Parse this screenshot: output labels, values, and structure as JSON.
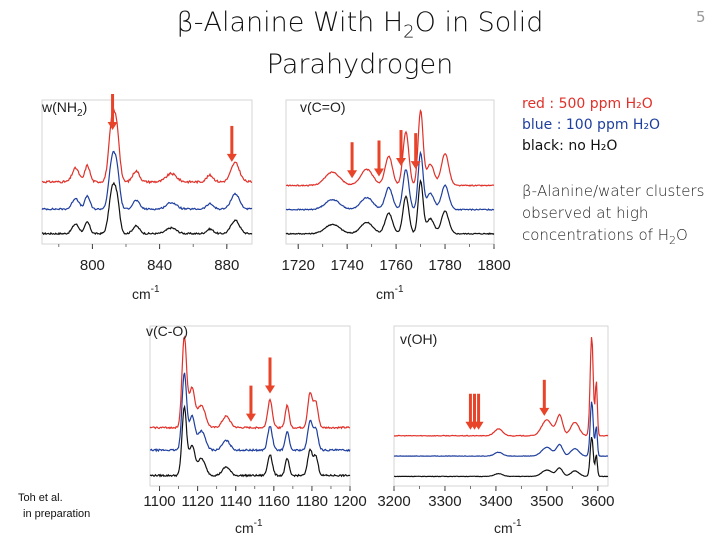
{
  "slide": {
    "title_pre": "β-Alanine With H",
    "title_sub": "2",
    "title_post": "O in Solid",
    "title_line2": "Parahydrogen",
    "number": "5"
  },
  "legend": {
    "red": "red : 500 ppm H₂O",
    "blue": "blue : 100 ppm H₂O",
    "black": "black: no H₂O"
  },
  "note": {
    "pre": "β-Alanine/water clusters observed at high concentrations of H",
    "sub": "2",
    "post": "O"
  },
  "credit": {
    "line1": "Toh et al.",
    "line2": "in preparation"
  },
  "colors": {
    "red": "#e0312a",
    "blue": "#1f3f9e",
    "black": "#111111",
    "arrow": "#e8442a"
  },
  "chart_data": [
    {
      "type": "line",
      "panel": "w(NH2)",
      "label_pre": "w(NH",
      "label_sub": "2",
      "label_post": ")",
      "xlabel": "cm",
      "xlabel_sup": "-1",
      "xlim": [
        770,
        895
      ],
      "ticks": [
        800,
        840,
        880
      ],
      "arrows_x": [
        812,
        883
      ],
      "peaks": [
        [
          790,
          0.25,
          2
        ],
        [
          797,
          0.3,
          1.5
        ],
        [
          812,
          1.2,
          2
        ],
        [
          815,
          0.6,
          1.5
        ],
        [
          826,
          0.2,
          2
        ],
        [
          847,
          0.15,
          3
        ],
        [
          870,
          0.12,
          2
        ],
        [
          885,
          0.35,
          2.5
        ]
      ],
      "series": [
        {
          "name": "red : 500 ppm H₂O",
          "color": "red",
          "offset": 0.95,
          "scale": 1.0,
          "noise": 0.04
        },
        {
          "name": "blue : 100 ppm H₂O",
          "color": "blue",
          "offset": 0.45,
          "scale": 0.8,
          "noise": 0.03
        },
        {
          "name": "black: no H₂O",
          "color": "black",
          "offset": 0.0,
          "scale": 0.7,
          "noise": 0.03
        }
      ]
    },
    {
      "type": "line",
      "panel": "v(C=O)",
      "label_pre": "v(C=O)",
      "label_sub": "",
      "label_post": "",
      "xlabel": "cm",
      "xlabel_sup": "-1",
      "xlim": [
        1715,
        1800
      ],
      "ticks": [
        1720,
        1740,
        1760,
        1780,
        1800
      ],
      "arrows_x": [
        1742,
        1753,
        1762,
        1768
      ],
      "peaks": [
        [
          1734,
          0.25,
          3
        ],
        [
          1748,
          0.3,
          2.5
        ],
        [
          1757,
          0.55,
          1.5
        ],
        [
          1764,
          1.0,
          1.2
        ],
        [
          1770,
          1.4,
          1.0
        ],
        [
          1774,
          0.4,
          1.5
        ],
        [
          1780,
          0.6,
          1.5
        ]
      ],
      "series": [
        {
          "name": "red : 500 ppm H₂O",
          "color": "red",
          "offset": 0.9,
          "scale": 1.0,
          "noise": 0.02
        },
        {
          "name": "blue : 100 ppm H₂O",
          "color": "blue",
          "offset": 0.45,
          "scale": 0.75,
          "noise": 0.02
        },
        {
          "name": "black: no H₂O",
          "color": "black",
          "offset": 0.0,
          "scale": 0.7,
          "noise": 0.02
        }
      ]
    },
    {
      "type": "line",
      "panel": "v(C-O)",
      "label_pre": "v(C-O)",
      "label_sub": "",
      "label_post": "",
      "xlabel": "cm",
      "xlabel_sup": "-1",
      "xlim": [
        1095,
        1200
      ],
      "ticks": [
        1100,
        1120,
        1140,
        1160,
        1180,
        1200
      ],
      "arrows_x": [
        1148,
        1158
      ],
      "peaks": [
        [
          1113,
          1.6,
          1.2
        ],
        [
          1117,
          0.7,
          1.5
        ],
        [
          1122,
          0.4,
          2
        ],
        [
          1135,
          0.2,
          2
        ],
        [
          1158,
          0.5,
          1.2
        ],
        [
          1167,
          0.4,
          1.0
        ],
        [
          1179,
          0.6,
          1.2
        ],
        [
          1182,
          0.45,
          1.2
        ]
      ],
      "series": [
        {
          "name": "red : 500 ppm H₂O",
          "color": "red",
          "offset": 0.85,
          "scale": 1.0,
          "noise": 0.03
        },
        {
          "name": "blue : 100 ppm H₂O",
          "color": "blue",
          "offset": 0.45,
          "scale": 0.85,
          "noise": 0.03
        },
        {
          "name": "black: no H₂O",
          "color": "black",
          "offset": 0.0,
          "scale": 0.75,
          "noise": 0.03
        }
      ]
    },
    {
      "type": "line",
      "panel": "v(OH)",
      "label_pre": "v(OH)",
      "label_sub": "",
      "label_post": "",
      "xlabel": "cm",
      "xlabel_sup": "-1",
      "xlim": [
        3200,
        3620
      ],
      "ticks": [
        3200,
        3300,
        3400,
        3500,
        3600
      ],
      "arrows_x": [
        3350,
        3358,
        3366,
        3495
      ],
      "peaks": [
        [
          3405,
          0.15,
          8
        ],
        [
          3500,
          0.35,
          10
        ],
        [
          3525,
          0.45,
          6
        ],
        [
          3555,
          0.3,
          8
        ],
        [
          3588,
          2.2,
          3
        ],
        [
          3597,
          1.2,
          2
        ]
      ],
      "series": [
        {
          "name": "red : 500 ppm H₂O",
          "color": "red",
          "offset": 0.9,
          "scale": 1.0,
          "noise": 0.015
        },
        {
          "name": "blue : 100 ppm H₂O",
          "color": "blue",
          "offset": 0.45,
          "scale": 0.55,
          "noise": 0.01
        },
        {
          "name": "black: no H₂O",
          "color": "black",
          "offset": 0.0,
          "scale": 0.4,
          "noise": 0.01
        }
      ]
    }
  ]
}
